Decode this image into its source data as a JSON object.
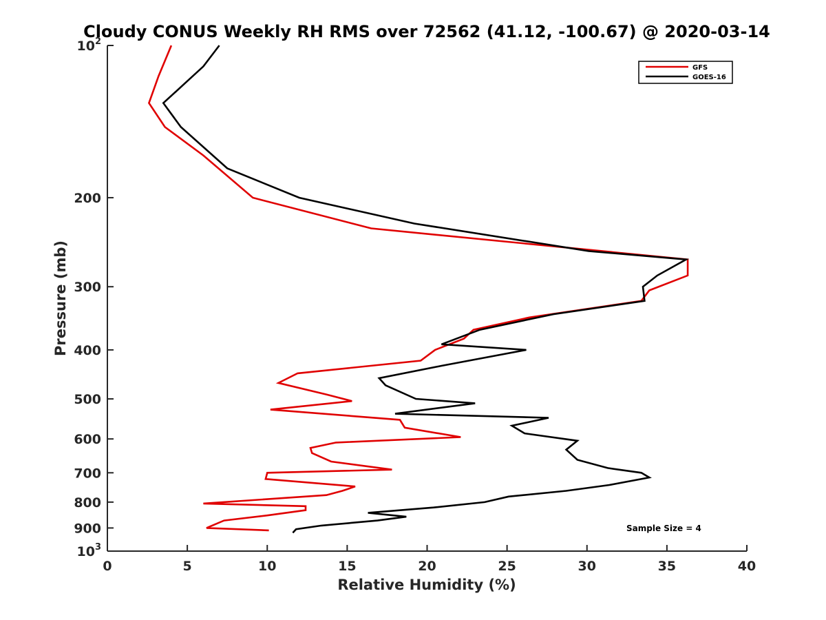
{
  "chart_data": {
    "type": "line",
    "title": "Cloudy CONUS Weekly RH RMS over 72562 (41.12, -100.67) @ 2020-03-14",
    "xlabel": "Relative Humidity (%)",
    "ylabel": "Pressure (mb)",
    "xlim": [
      0,
      40
    ],
    "ylim": [
      100,
      1000
    ],
    "y_scale": "log",
    "y_reversed": true,
    "x_ticks": [
      "0",
      "5",
      "10",
      "15",
      "20",
      "25",
      "30",
      "35",
      "40"
    ],
    "y_ticks": [
      {
        "value": 100,
        "base": "10",
        "sup": "2"
      },
      {
        "value": 200,
        "base": "200",
        "sup": ""
      },
      {
        "value": 300,
        "base": "300",
        "sup": ""
      },
      {
        "value": 400,
        "base": "400",
        "sup": ""
      },
      {
        "value": 500,
        "base": "500",
        "sup": ""
      },
      {
        "value": 600,
        "base": "600",
        "sup": ""
      },
      {
        "value": 700,
        "base": "700",
        "sup": ""
      },
      {
        "value": 800,
        "base": "800",
        "sup": ""
      },
      {
        "value": 900,
        "base": "900",
        "sup": ""
      },
      {
        "value": 1000,
        "base": "10",
        "sup": "3"
      }
    ],
    "grid": false,
    "legend_position": "top-right",
    "annotation": "Sample Size = 4",
    "series": [
      {
        "name": "GFS",
        "color": "#e00000",
        "points": [
          [
            4.0,
            100
          ],
          [
            3.2,
            115
          ],
          [
            2.6,
            130
          ],
          [
            3.6,
            145
          ],
          [
            6.0,
            165
          ],
          [
            9.1,
            200
          ],
          [
            16.5,
            230
          ],
          [
            36.3,
            265
          ],
          [
            36.3,
            285
          ],
          [
            33.9,
            305
          ],
          [
            33.4,
            320
          ],
          [
            26.4,
            345
          ],
          [
            22.9,
            365
          ],
          [
            22.3,
            380
          ],
          [
            20.5,
            400
          ],
          [
            19.6,
            420
          ],
          [
            11.9,
            445
          ],
          [
            10.7,
            465
          ],
          [
            13.7,
            490
          ],
          [
            15.3,
            505
          ],
          [
            10.2,
            525
          ],
          [
            18.3,
            550
          ],
          [
            18.6,
            570
          ],
          [
            22.1,
            595
          ],
          [
            14.3,
            610
          ],
          [
            12.7,
            625
          ],
          [
            12.8,
            640
          ],
          [
            14.0,
            665
          ],
          [
            17.8,
            690
          ],
          [
            10.0,
            700
          ],
          [
            9.9,
            720
          ],
          [
            15.5,
            745
          ],
          [
            14.7,
            760
          ],
          [
            13.7,
            775
          ],
          [
            6.0,
            805
          ],
          [
            12.4,
            815
          ],
          [
            12.4,
            830
          ],
          [
            10.0,
            850
          ],
          [
            7.3,
            870
          ],
          [
            6.2,
            900
          ],
          [
            10.1,
            910
          ]
        ]
      },
      {
        "name": "GOES-16",
        "color": "#000000",
        "points": [
          [
            7.0,
            100
          ],
          [
            6.0,
            110
          ],
          [
            4.7,
            120
          ],
          [
            3.5,
            130
          ],
          [
            4.6,
            145
          ],
          [
            7.5,
            175
          ],
          [
            12.0,
            200
          ],
          [
            19.2,
            225
          ],
          [
            30.1,
            255
          ],
          [
            36.2,
            265
          ],
          [
            34.4,
            285
          ],
          [
            33.5,
            300
          ],
          [
            33.6,
            320
          ],
          [
            27.9,
            340
          ],
          [
            23.3,
            365
          ],
          [
            20.9,
            390
          ],
          [
            26.2,
            400
          ],
          [
            20.9,
            430
          ],
          [
            17.0,
            455
          ],
          [
            17.4,
            470
          ],
          [
            19.3,
            500
          ],
          [
            23.0,
            510
          ],
          [
            18.0,
            535
          ],
          [
            27.6,
            545
          ],
          [
            25.3,
            565
          ],
          [
            26.1,
            585
          ],
          [
            29.4,
            605
          ],
          [
            28.7,
            630
          ],
          [
            29.4,
            660
          ],
          [
            31.3,
            685
          ],
          [
            33.4,
            700
          ],
          [
            33.9,
            715
          ],
          [
            31.4,
            740
          ],
          [
            28.7,
            760
          ],
          [
            25.1,
            780
          ],
          [
            23.6,
            800
          ],
          [
            20.4,
            820
          ],
          [
            16.3,
            840
          ],
          [
            18.7,
            855
          ],
          [
            16.9,
            870
          ],
          [
            13.4,
            890
          ],
          [
            11.8,
            905
          ],
          [
            11.6,
            920
          ]
        ]
      }
    ]
  }
}
